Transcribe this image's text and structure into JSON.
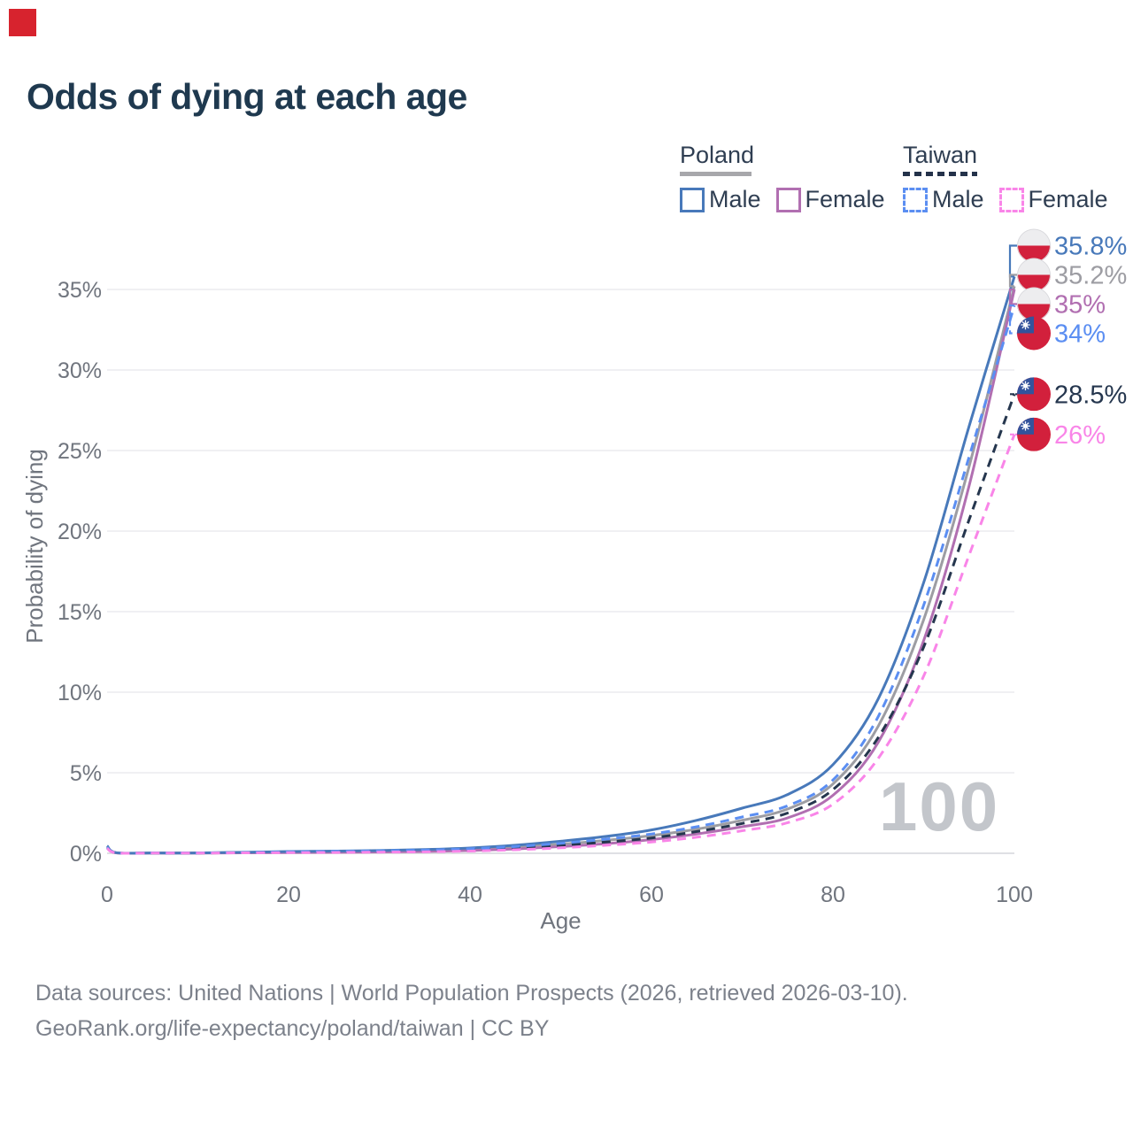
{
  "title": "Odds of dying at each age",
  "watermark": "100",
  "brand_color": "#d7232e",
  "legend": {
    "groups": [
      {
        "label": "Poland",
        "line_style": "solid",
        "underline_color": "#a7a7ab",
        "items": [
          {
            "label": "Male",
            "color": "#4879ba",
            "dashed": false
          },
          {
            "label": "Female",
            "color": "#b16fb1",
            "dashed": false
          }
        ]
      },
      {
        "label": "Taiwan",
        "line_style": "dashed",
        "underline_color": "#24324a",
        "items": [
          {
            "label": "Male",
            "color": "#5b8ef2",
            "dashed": true
          },
          {
            "label": "Female",
            "color": "#f985e8",
            "dashed": true
          }
        ]
      }
    ]
  },
  "icons": {
    "poland_flag": "poland-flag-icon (circle, white top half, red bottom half)",
    "taiwan_flag": "taiwan-flag-icon (red circle, blue canton with white sun)"
  },
  "footer": {
    "line1": "Data sources: United Nations | World Population Prospects (2026, retrieved 2026-03-10).",
    "line2": "GeoRank.org/life-expectancy/poland/taiwan | CC BY"
  },
  "chart_data": {
    "type": "line",
    "title": "Odds of dying at each age",
    "xlabel": "Age",
    "ylabel": "Probability of dying",
    "xlim": [
      0,
      100
    ],
    "ylim_pct": [
      0,
      37
    ],
    "x_ticks": [
      0,
      20,
      40,
      60,
      80,
      100
    ],
    "y_ticks_pct": [
      0,
      5,
      10,
      15,
      20,
      25,
      30,
      35
    ],
    "y_tick_labels": [
      "0%",
      "5%",
      "10%",
      "15%",
      "20%",
      "25%",
      "30%",
      "35%"
    ],
    "grid": "horizontal",
    "legend_position": "top-right",
    "ages": [
      0,
      1,
      5,
      10,
      15,
      20,
      25,
      30,
      35,
      40,
      45,
      50,
      55,
      60,
      65,
      70,
      75,
      80,
      85,
      90,
      95,
      100
    ],
    "series": [
      {
        "name": "Poland",
        "flag": "poland",
        "style": "solid",
        "color": "#9d9da3",
        "end_label": "35.2%",
        "values": [
          0.42,
          0.03,
          0.02,
          0.02,
          0.04,
          0.08,
          0.1,
          0.13,
          0.17,
          0.25,
          0.38,
          0.56,
          0.8,
          1.1,
          1.5,
          2.05,
          2.75,
          4.3,
          7.9,
          14.5,
          24.0,
          35.2
        ]
      },
      {
        "name": "Poland female",
        "flag": "poland",
        "style": "solid",
        "color": "#b16fb1",
        "end_label": "35%",
        "values": [
          0.38,
          0.03,
          0.015,
          0.015,
          0.03,
          0.05,
          0.06,
          0.08,
          0.11,
          0.17,
          0.27,
          0.42,
          0.6,
          0.85,
          1.2,
          1.65,
          2.2,
          3.6,
          6.9,
          13.2,
          22.8,
          35.0
        ]
      },
      {
        "name": "Poland male",
        "flag": "poland",
        "style": "solid",
        "color": "#4879ba",
        "end_label": "35.8%",
        "values": [
          0.46,
          0.04,
          0.02,
          0.02,
          0.06,
          0.11,
          0.14,
          0.17,
          0.23,
          0.33,
          0.5,
          0.75,
          1.05,
          1.45,
          2.05,
          2.8,
          3.65,
          5.5,
          9.6,
          16.8,
          26.5,
          35.8
        ]
      },
      {
        "name": "Taiwan",
        "flag": "taiwan",
        "style": "dashed",
        "color": "#25364e",
        "end_label": "28.5%",
        "values": [
          0.34,
          0.03,
          0.015,
          0.015,
          0.04,
          0.07,
          0.09,
          0.12,
          0.16,
          0.23,
          0.34,
          0.5,
          0.7,
          0.95,
          1.35,
          1.85,
          2.5,
          3.95,
          7.2,
          12.8,
          20.7,
          28.5
        ]
      },
      {
        "name": "Taiwan male",
        "flag": "taiwan",
        "style": "dashed",
        "color": "#5b8ef2",
        "end_label": "34%",
        "values": [
          0.37,
          0.03,
          0.02,
          0.02,
          0.05,
          0.09,
          0.12,
          0.15,
          0.2,
          0.28,
          0.42,
          0.62,
          0.88,
          1.2,
          1.65,
          2.25,
          2.95,
          4.55,
          8.5,
          15.4,
          24.6,
          34.0
        ]
      },
      {
        "name": "Taiwan female",
        "flag": "taiwan",
        "style": "dashed",
        "color": "#f985e8",
        "end_label": "26%",
        "values": [
          0.31,
          0.025,
          0.012,
          0.012,
          0.025,
          0.04,
          0.05,
          0.07,
          0.09,
          0.14,
          0.22,
          0.34,
          0.5,
          0.7,
          1.0,
          1.4,
          1.9,
          3.05,
          5.9,
          11.0,
          18.5,
          26.0
        ]
      }
    ]
  }
}
